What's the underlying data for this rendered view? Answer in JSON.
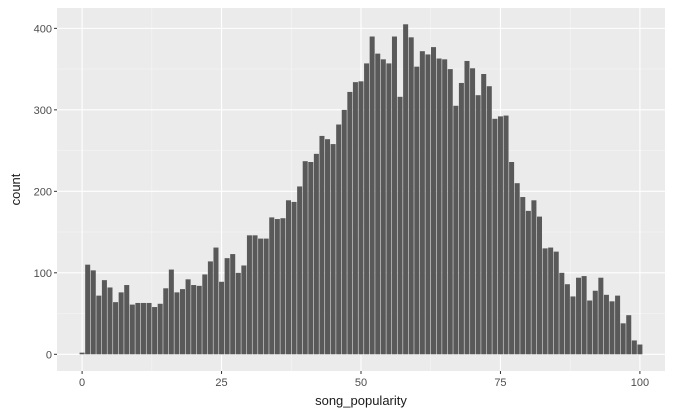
{
  "chart_data": {
    "type": "bar",
    "title": "",
    "xlabel": "song_popularity",
    "ylabel": "count",
    "xlim": [
      -4.5,
      104.5
    ],
    "ylim": [
      -20.5,
      425
    ],
    "x_ticks": [
      0,
      25,
      50,
      75,
      100
    ],
    "y_ticks": [
      0,
      100,
      200,
      300,
      400
    ],
    "grid": true,
    "legend": "none",
    "colors": {
      "bar": "#595959",
      "panel": "#ebebeb",
      "grid_major": "#ffffff",
      "grid_minor": "#f5f5f5"
    },
    "x": [
      0,
      1,
      2,
      3,
      4,
      5,
      6,
      7,
      8,
      9,
      10,
      11,
      12,
      13,
      14,
      15,
      16,
      17,
      18,
      19,
      20,
      21,
      22,
      23,
      24,
      25,
      26,
      27,
      28,
      29,
      30,
      31,
      32,
      33,
      34,
      35,
      36,
      37,
      38,
      39,
      40,
      41,
      42,
      43,
      44,
      45,
      46,
      47,
      48,
      49,
      50,
      51,
      52,
      53,
      54,
      55,
      56,
      57,
      58,
      59,
      60,
      61,
      62,
      63,
      64,
      65,
      66,
      67,
      68,
      69,
      70,
      71,
      72,
      73,
      74,
      75,
      76,
      77,
      78,
      79,
      80,
      81,
      82,
      83,
      84,
      85,
      86,
      87,
      88,
      89,
      90,
      91,
      92,
      93,
      94,
      95,
      96,
      97,
      98,
      99,
      100
    ],
    "values": [
      2,
      110,
      103,
      72,
      91,
      82,
      64,
      76,
      85,
      61,
      63,
      63,
      63,
      58,
      62,
      81,
      104,
      76,
      80,
      92,
      85,
      84,
      98,
      114,
      131,
      89,
      118,
      123,
      100,
      109,
      146,
      146,
      142,
      142,
      168,
      166,
      167,
      189,
      187,
      206,
      237,
      236,
      246,
      268,
      264,
      258,
      282,
      300,
      322,
      334,
      335,
      357,
      390,
      369,
      362,
      357,
      390,
      316,
      405,
      389,
      353,
      372,
      368,
      377,
      363,
      362,
      350,
      305,
      333,
      360,
      351,
      318,
      344,
      329,
      289,
      292,
      293,
      236,
      210,
      193,
      176,
      189,
      169,
      130,
      131,
      126,
      100,
      86,
      71,
      94,
      96,
      66,
      78,
      94,
      73,
      65,
      72,
      38,
      48,
      17,
      12
    ]
  }
}
